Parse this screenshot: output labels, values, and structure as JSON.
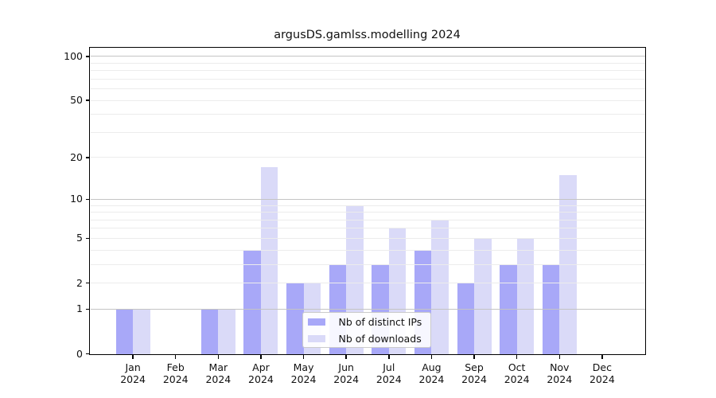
{
  "chart_data": {
    "type": "bar",
    "title": "argusDS.gamlss.modelling 2024",
    "categories": [
      "Jan",
      "Feb",
      "Mar",
      "Apr",
      "May",
      "Jun",
      "Jul",
      "Aug",
      "Sep",
      "Oct",
      "Nov",
      "Dec"
    ],
    "x_year_label": "2024",
    "series": [
      {
        "key": "distinct-ips",
        "name": "Nb of distinct IPs",
        "color": "#a8a8f8",
        "values": [
          1,
          0,
          1,
          4,
          2,
          3,
          3,
          4,
          2,
          3,
          3,
          0
        ]
      },
      {
        "key": "downloads",
        "name": "Nb of downloads",
        "color": "#dadaf8",
        "values": [
          1,
          0,
          1,
          17,
          2,
          9,
          6,
          7,
          5,
          5,
          15,
          0
        ]
      }
    ],
    "xlabel": "",
    "ylabel": "",
    "yscale": "log1p",
    "ylim": [
      0,
      113
    ],
    "y_ticks": [
      0,
      1,
      2,
      5,
      10,
      20,
      50,
      100
    ],
    "grid_major": [
      1,
      10,
      100
    ],
    "grid_minor": [
      2,
      3,
      4,
      5,
      6,
      7,
      8,
      9,
      20,
      30,
      40,
      50,
      60,
      70,
      80,
      90
    ],
    "grid_on": true,
    "legend": {
      "position": "inside-lower-center",
      "entries": [
        "Nb of distinct IPs",
        "Nb of downloads"
      ]
    }
  },
  "colors": {
    "background": "#ffffff",
    "spine": "#000000",
    "grid_major": "#c4c4c4",
    "grid_minor": "#ececec",
    "legend_border": "#cbcbcb",
    "series_ips": "#a8a8f8",
    "series_downloads": "#dadaf8"
  }
}
